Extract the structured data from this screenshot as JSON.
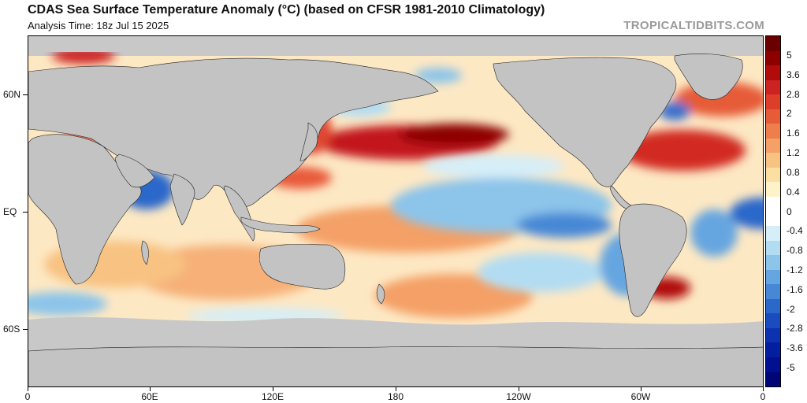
{
  "header": {
    "title": "CDAS Sea Surface Temperature Anomaly (°C) (based on CFSR 1981-2010 Climatology)",
    "subtitle": "Analysis Time: 18z Jul 15 2025",
    "brand": "TROPICALTIDBITS.COM"
  },
  "axes": {
    "y_labels": [
      "60N",
      "EQ",
      "60S"
    ],
    "x_labels": [
      "0",
      "60E",
      "120E",
      "180",
      "120W",
      "60W",
      "0"
    ]
  },
  "colorbar": {
    "labels": [
      "5",
      "3.6",
      "2.8",
      "2",
      "1.6",
      "1.2",
      "0.8",
      "0.4",
      "0",
      "-0.4",
      "-0.8",
      "-1.2",
      "-1.6",
      "-2",
      "-2.8",
      "-3.6",
      "-5"
    ],
    "colors": [
      "#6a0000",
      "#8e0000",
      "#b10c0c",
      "#cc2222",
      "#dd3e2a",
      "#e65c38",
      "#ee7e4c",
      "#f4a066",
      "#f8c282",
      "#fbdea2",
      "#fdf2c8",
      "#ffffff",
      "#ffffff",
      "#d6eef8",
      "#b2dcf2",
      "#8cc4ea",
      "#66a6e0",
      "#4688d6",
      "#2c68ca",
      "#1a4cc0",
      "#0c32b0",
      "#041ea0",
      "#001090",
      "#000678"
    ]
  }
}
